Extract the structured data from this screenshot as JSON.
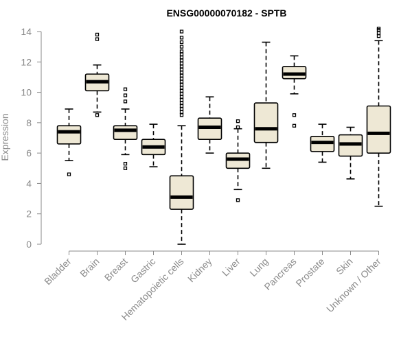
{
  "chart_data": {
    "type": "box",
    "title": "ENSG00000070182 - SPTB",
    "ylabel": "Expression",
    "xlabel": "",
    "ylim": [
      0,
      14
    ],
    "yticks": [
      0,
      2,
      4,
      6,
      8,
      10,
      12,
      14
    ],
    "box_fill": "#eee8d5",
    "axis_color": "#8a8a8a",
    "categories": [
      "Bladder",
      "Brain",
      "Breast",
      "Gastric",
      "Hematopoietic cells",
      "Kidney",
      "Liver",
      "Lung",
      "Pancreas",
      "Prostate",
      "Skin",
      "Unknown / Other"
    ],
    "boxes": [
      {
        "label": "Bladder",
        "whisker_low": 5.5,
        "q1": 6.6,
        "median": 7.4,
        "q3": 7.8,
        "whisker_high": 8.9,
        "outliers": [
          4.6
        ]
      },
      {
        "label": "Brain",
        "whisker_low": 8.7,
        "q1": 10.1,
        "median": 10.7,
        "q3": 11.2,
        "whisker_high": 11.8,
        "outliers": [
          8.5,
          13.5,
          13.8
        ]
      },
      {
        "label": "Breast",
        "whisker_low": 5.9,
        "q1": 6.9,
        "median": 7.5,
        "q3": 7.8,
        "whisker_high": 8.9,
        "outliers": [
          5.0,
          5.3,
          9.4,
          9.8,
          10.2
        ]
      },
      {
        "label": "Gastric",
        "whisker_low": 5.1,
        "q1": 5.9,
        "median": 6.4,
        "q3": 6.9,
        "whisker_high": 7.9,
        "outliers": []
      },
      {
        "label": "Hematopoietic cells",
        "whisker_low": 0.0,
        "q1": 2.3,
        "median": 3.1,
        "q3": 4.5,
        "whisker_high": 7.8,
        "outliers": [
          8.5,
          8.7,
          8.9,
          9.1,
          9.3,
          9.5,
          9.7,
          9.9,
          10.1,
          10.3,
          10.5,
          10.7,
          10.9,
          11.1,
          11.3,
          11.5,
          11.7,
          11.9,
          12.1,
          12.3,
          12.5,
          12.7,
          13.0,
          13.3,
          13.6,
          14.0
        ]
      },
      {
        "label": "Kidney",
        "whisker_low": 6.0,
        "q1": 6.9,
        "median": 7.7,
        "q3": 8.3,
        "whisker_high": 9.7,
        "outliers": []
      },
      {
        "label": "Liver",
        "whisker_low": 3.6,
        "q1": 5.0,
        "median": 5.6,
        "q3": 6.0,
        "whisker_high": 7.6,
        "outliers": [
          2.9,
          7.7,
          8.1
        ]
      },
      {
        "label": "Lung",
        "whisker_low": 5.0,
        "q1": 6.7,
        "median": 7.6,
        "q3": 9.3,
        "whisker_high": 13.3,
        "outliers": []
      },
      {
        "label": "Pancreas",
        "whisker_low": 9.9,
        "q1": 10.9,
        "median": 11.2,
        "q3": 11.7,
        "whisker_high": 12.4,
        "outliers": [
          7.8,
          8.5
        ]
      },
      {
        "label": "Prostate",
        "whisker_low": 5.4,
        "q1": 6.1,
        "median": 6.7,
        "q3": 7.1,
        "whisker_high": 7.9,
        "outliers": []
      },
      {
        "label": "Skin",
        "whisker_low": 4.3,
        "q1": 5.8,
        "median": 6.6,
        "q3": 7.2,
        "whisker_high": 7.7,
        "outliers": []
      },
      {
        "label": "Unknown / Other",
        "whisker_low": 2.5,
        "q1": 6.0,
        "median": 7.3,
        "q3": 9.1,
        "whisker_high": 13.4,
        "outliers": [
          13.7,
          13.9,
          14.1,
          14.2
        ]
      }
    ]
  }
}
